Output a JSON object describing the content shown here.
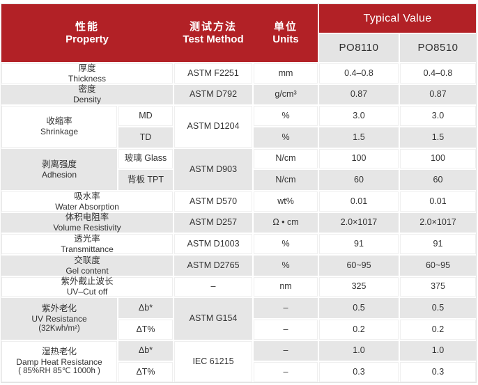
{
  "colors": {
    "header_red": "#B22126",
    "row_gray": "#E6E6E6",
    "subheader_gray": "#E4E4E4",
    "text_dark": "#333333"
  },
  "table": {
    "header": {
      "property_zh": "性能",
      "property_en": "Property",
      "method_zh": "测试方法",
      "method_en": "Test Method",
      "units_zh": "单位",
      "units_en": "Units",
      "typical_value": "Typical Value",
      "product_1": "PO8110",
      "product_2": "PO8510"
    },
    "groups": [
      {
        "zh": "厚度",
        "en": "Thickness",
        "method": "ASTM F2251",
        "rows": [
          {
            "unit": "mm",
            "po8110": "0.4–0.8",
            "po8510": "0.4–0.8"
          }
        ]
      },
      {
        "zh": "密度",
        "en": "Density",
        "method": "ASTM D792",
        "rows": [
          {
            "unit": "g/cm³",
            "po8110": "0.87",
            "po8510": "0.87"
          }
        ]
      },
      {
        "zh": "收缩率",
        "en": "Shrinkage",
        "method": "ASTM D1204",
        "rows": [
          {
            "label": "MD",
            "unit": "%",
            "po8110": "3.0",
            "po8510": "3.0"
          },
          {
            "label": "TD",
            "unit": "%",
            "po8110": "1.5",
            "po8510": "1.5"
          }
        ]
      },
      {
        "zh": "剥离强度",
        "en": "Adhesion",
        "method": "ASTM D903",
        "rows": [
          {
            "label": "玻璃 Glass",
            "unit": "N/cm",
            "po8110": "100",
            "po8510": "100"
          },
          {
            "label": "背板 TPT",
            "unit": "N/cm",
            "po8110": "60",
            "po8510": "60"
          }
        ]
      },
      {
        "zh": "吸水率",
        "en": "Water Absorption",
        "method": "ASTM D570",
        "rows": [
          {
            "unit": "wt%",
            "po8110": "0.01",
            "po8510": "0.01"
          }
        ]
      },
      {
        "zh": "体积电阻率",
        "en": "Volume Resistivity",
        "method": "ASTM D257",
        "rows": [
          {
            "unit": "Ω • cm",
            "po8110": "2.0×1017",
            "po8510": "2.0×1017"
          }
        ]
      },
      {
        "zh": "透光率",
        "en": "Transmittance",
        "method": "ASTM D1003",
        "rows": [
          {
            "unit": "%",
            "po8110": "91",
            "po8510": "91"
          }
        ]
      },
      {
        "zh": "交联度",
        "en": "Gel content",
        "method": "ASTM D2765",
        "rows": [
          {
            "unit": "%",
            "po8110": "60~95",
            "po8510": "60~95"
          }
        ]
      },
      {
        "zh": "紫外截止波长",
        "en": "UV–Cut off",
        "method": "–",
        "rows": [
          {
            "unit": "nm",
            "po8110": "325",
            "po8510": "375"
          }
        ]
      },
      {
        "zh": "紫外老化",
        "en": "UV Resistance",
        "note": "(32Kwh/m²)",
        "method": "ASTM G154",
        "rows": [
          {
            "label": "Δb*",
            "unit": "–",
            "po8110": "0.5",
            "po8510": "0.5"
          },
          {
            "label": "ΔT%",
            "unit": "–",
            "po8110": "0.2",
            "po8510": "0.2"
          }
        ]
      },
      {
        "zh": "湿热老化",
        "en": "Damp Heat Resistance",
        "note": "( 85%RH  85℃  1000h )",
        "method": "IEC 61215",
        "rows": [
          {
            "label": "Δb*",
            "unit": "–",
            "po8110": "1.0",
            "po8510": "1.0"
          },
          {
            "label": "ΔT%",
            "unit": "–",
            "po8110": "0.3",
            "po8510": "0.3"
          }
        ]
      }
    ]
  }
}
